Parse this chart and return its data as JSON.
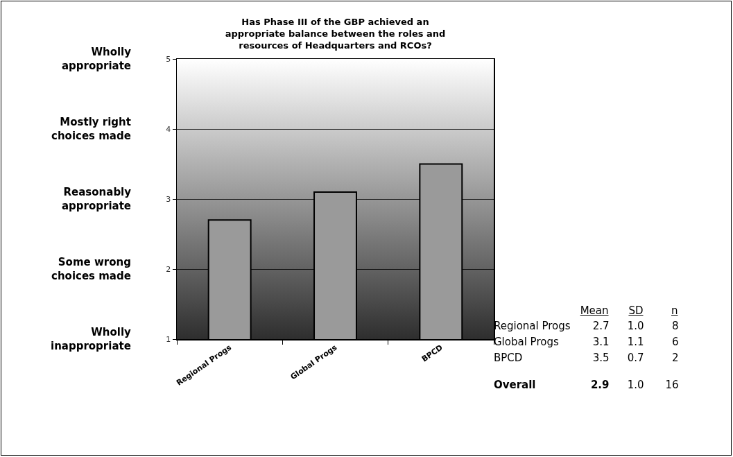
{
  "chart_data": [
    {
      "type": "bar",
      "title": "Has Phase III of the GBP achieved an\nappropriate balance between the roles and\nresources of Headquarters and RCOs?",
      "categories": [
        "Regional Progs",
        "Global Progs",
        "BPCD"
      ],
      "values": [
        2.7,
        3.1,
        3.5
      ],
      "color": "#9a9a9a",
      "ylim": [
        1,
        5
      ],
      "yticks": [
        1,
        2,
        3,
        4,
        5
      ],
      "annotations": [
        "Wholly\nappropriate",
        "Mostly right\nchoices made",
        "Reasonably\nappropriate",
        "Some wrong\nchoices made",
        "Wholly\ninappropriate"
      ],
      "grid": "y",
      "legend": false
    },
    {
      "type": "other",
      "categories": [
        "Regional Progs",
        "Global Progs",
        "BPCD",
        "Overall"
      ],
      "series": [
        {
          "name": "Mean",
          "values": [
            2.7,
            3.1,
            3.5,
            2.9
          ],
          "value_labels": [
            "2.7",
            "3.1",
            "3.5",
            "2.9"
          ]
        },
        {
          "name": "SD",
          "values": [
            1.0,
            1.1,
            0.7,
            1.0
          ],
          "value_labels": [
            "1.0",
            "1.1",
            "0.7",
            "1.0"
          ]
        },
        {
          "name": "n",
          "values": [
            8,
            6,
            2,
            16
          ],
          "value_labels": [
            "8",
            "6",
            "2",
            "16"
          ]
        }
      ],
      "data_labels": true
    }
  ]
}
